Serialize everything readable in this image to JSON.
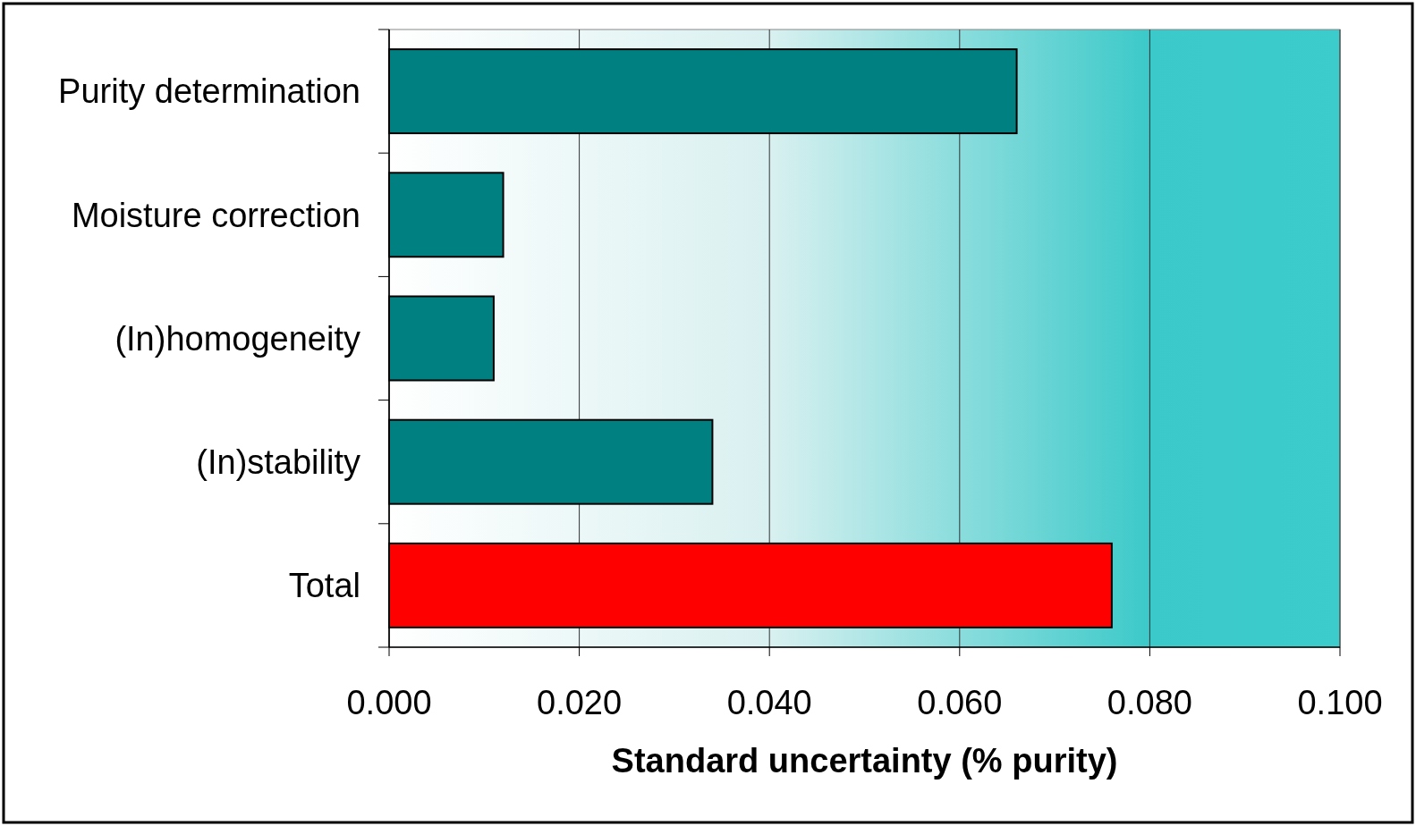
{
  "chart_data": {
    "type": "bar",
    "orientation": "horizontal",
    "xlabel": "Standard uncertainty (% purity)",
    "categories": [
      "Purity determination",
      "Moisture correction",
      "(In)homogeneity",
      "(In)stability",
      "Total"
    ],
    "values": [
      0.066,
      0.012,
      0.011,
      0.034,
      0.076
    ],
    "colors": [
      "#008080",
      "#008080",
      "#008080",
      "#008080",
      "#ff0000"
    ],
    "xlim": [
      0,
      0.1
    ],
    "xticks": [
      {
        "value": 0,
        "label": "0.000"
      },
      {
        "value": 0.02,
        "label": "0.020"
      },
      {
        "value": 0.04,
        "label": "0.040"
      },
      {
        "value": 0.06,
        "label": "0.060"
      },
      {
        "value": 0.08,
        "label": "0.080"
      },
      {
        "value": 0.1,
        "label": "0.100"
      }
    ],
    "grid": "x"
  }
}
